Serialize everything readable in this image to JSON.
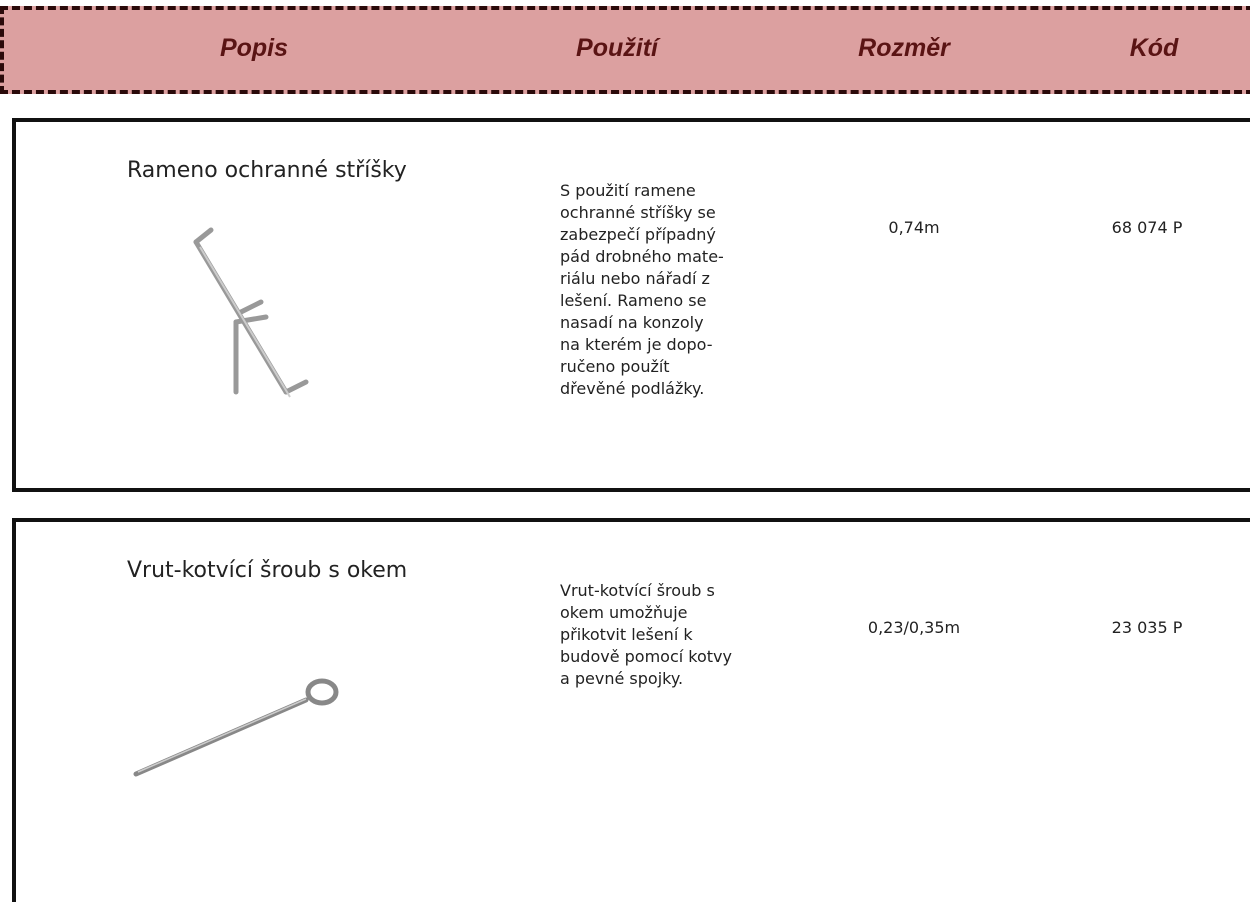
{
  "header": {
    "columns": [
      "Popis",
      "Použití",
      "Rozměr",
      "Kód"
    ]
  },
  "items": [
    {
      "name": "Rameno ochranné stříšky",
      "description": [
        "S použití ramene",
        "ochranné stříšky se",
        "zabezpečí případný",
        "pád drobného mate-",
        "riálu nebo nářadí z",
        "lešení. Rameno se",
        "nasadí na konzoly",
        "na kterém je dopo-",
        "ručeno použít",
        "dřevěné podlážky."
      ],
      "size": "0,74m",
      "code": "68 074 P"
    },
    {
      "name": "Vrut-kotvící šroub s okem",
      "description": [
        "Vrut-kotvící šroub s",
        "okem umožňuje",
        "přikotvit lešení k",
        "budově pomocí kotvy",
        "a pevné spojky."
      ],
      "size": "0,23/0,35m",
      "code": "23 035 P"
    }
  ]
}
